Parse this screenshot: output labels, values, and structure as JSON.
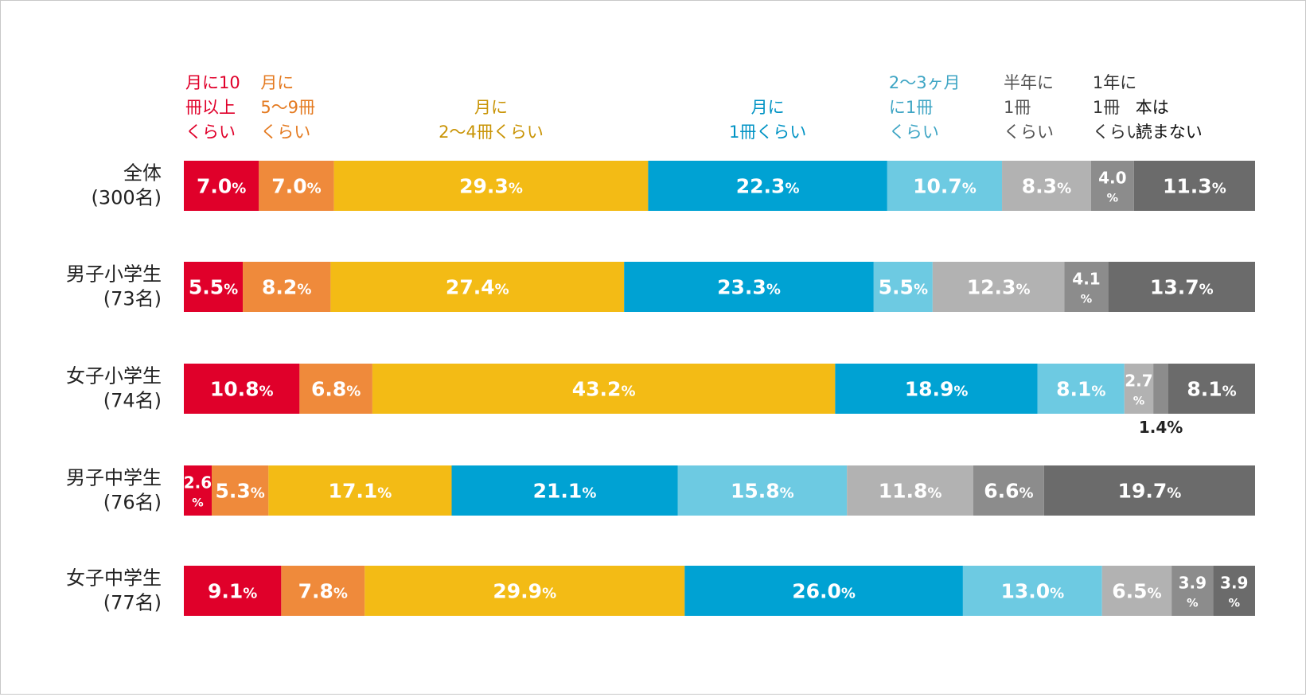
{
  "chart_data": {
    "type": "bar",
    "stacked": true,
    "orientation": "horizontal",
    "percent_suffix": "%",
    "grid": false,
    "legend_position": "top (labels above each segment)",
    "categories": [
      [
        "全体",
        "(300名)"
      ],
      [
        "男子小学生",
        "(73名)"
      ],
      [
        "女子小学生",
        "(74名)"
      ],
      [
        "男子中学生",
        "(76名)"
      ],
      [
        "女子中学生",
        "(77名)"
      ]
    ],
    "series": [
      {
        "name": [
          "月に10",
          "冊以上",
          "くらい"
        ],
        "color": "#e0002a",
        "label_color": "#e0002a",
        "values": [
          7.0,
          5.5,
          10.8,
          2.6,
          9.1
        ]
      },
      {
        "name": [
          "月に",
          "5〜9冊",
          "くらい"
        ],
        "color": "#ef8a3b",
        "label_color": "#e47a20",
        "values": [
          7.0,
          8.2,
          6.8,
          5.3,
          7.8
        ]
      },
      {
        "name": [
          "月に",
          "2〜4冊くらい"
        ],
        "color": "#f3bb15",
        "label_color": "#c99406",
        "values": [
          29.3,
          27.4,
          43.2,
          17.1,
          29.9
        ]
      },
      {
        "name": [
          "月に",
          "1冊くらい"
        ],
        "color": "#00a2d3",
        "label_color": "#0093c4",
        "values": [
          22.3,
          23.3,
          18.9,
          21.1,
          26.0
        ]
      },
      {
        "name": [
          "2〜3ヶ月",
          "に1冊",
          "くらい"
        ],
        "color": "#6dcae2",
        "label_color": "#3ea5c4",
        "values": [
          10.7,
          5.5,
          8.1,
          15.8,
          13.0
        ]
      },
      {
        "name": [
          "半年に",
          "1冊",
          "くらい"
        ],
        "color": "#b2b2b2",
        "label_color": "#555555",
        "values": [
          8.3,
          12.3,
          2.7,
          11.8,
          6.5
        ]
      },
      {
        "name": [
          "1年に",
          "1冊",
          "くらい"
        ],
        "color": "#8c8c8c",
        "label_color": "#333333",
        "values": [
          4.0,
          4.1,
          1.4,
          6.6,
          3.9
        ]
      },
      {
        "name": [
          "本は",
          "読まない"
        ],
        "color": "#6b6b6b",
        "label_color": "#111111",
        "values": [
          11.3,
          13.7,
          8.1,
          19.7,
          3.9
        ]
      }
    ]
  }
}
